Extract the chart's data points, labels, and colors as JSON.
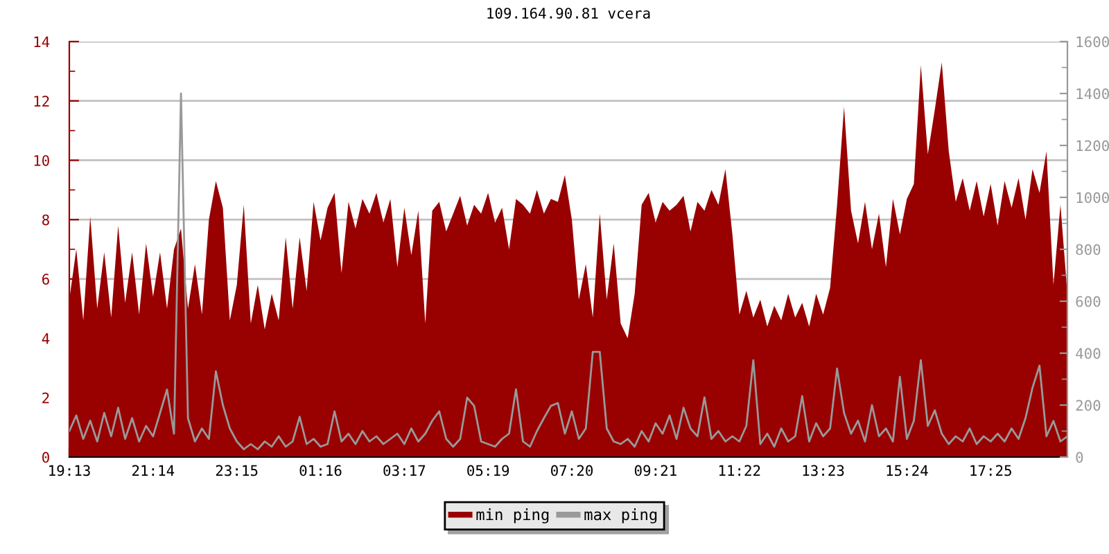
{
  "chart_data": {
    "type": "area",
    "title": "109.164.90.81 vcera",
    "categories": [
      "19:13",
      null,
      null,
      null,
      null,
      null,
      null,
      null,
      null,
      null,
      null,
      null,
      "21:14",
      null,
      null,
      null,
      null,
      null,
      null,
      null,
      null,
      null,
      null,
      null,
      "23:15",
      null,
      null,
      null,
      null,
      null,
      null,
      null,
      null,
      null,
      null,
      null,
      "01:16",
      null,
      null,
      null,
      null,
      null,
      null,
      null,
      null,
      null,
      null,
      null,
      "03:17",
      null,
      null,
      null,
      null,
      null,
      null,
      null,
      null,
      null,
      null,
      null,
      "05:19",
      null,
      null,
      null,
      null,
      null,
      null,
      null,
      null,
      null,
      null,
      null,
      "07:20",
      null,
      null,
      null,
      null,
      null,
      null,
      null,
      null,
      null,
      null,
      null,
      "09:21",
      null,
      null,
      null,
      null,
      null,
      null,
      null,
      null,
      null,
      null,
      null,
      "11:22",
      null,
      null,
      null,
      null,
      null,
      null,
      null,
      null,
      null,
      null,
      null,
      "13:23",
      null,
      null,
      null,
      null,
      null,
      null,
      null,
      null,
      null,
      null,
      null,
      "15:24",
      null,
      null,
      null,
      null,
      null,
      null,
      null,
      null,
      null,
      null,
      null,
      "17:25",
      null,
      null,
      null,
      null,
      null,
      null,
      null,
      null,
      null,
      null,
      null
    ],
    "series": [
      {
        "name": "min ping",
        "color": "#990000",
        "values": [
          5.3,
          7.0,
          4.6,
          8.1,
          5.0,
          6.9,
          4.7,
          7.8,
          5.2,
          6.9,
          4.8,
          7.2,
          5.4,
          6.9,
          5.0,
          7.0,
          7.7,
          5.0,
          6.5,
          4.8,
          8.0,
          9.3,
          8.4,
          4.6,
          5.8,
          8.5,
          4.5,
          5.8,
          4.3,
          5.5,
          4.6,
          7.4,
          5.0,
          7.4,
          5.6,
          8.6,
          7.3,
          8.4,
          8.9,
          6.2,
          8.6,
          7.7,
          8.7,
          8.2,
          8.9,
          7.9,
          8.7,
          6.4,
          8.4,
          6.8,
          8.3,
          4.5,
          8.3,
          8.6,
          7.6,
          8.2,
          8.8,
          7.8,
          8.5,
          8.2,
          8.9,
          7.9,
          8.4,
          7.0,
          8.7,
          8.5,
          8.2,
          9.0,
          8.2,
          8.7,
          8.6,
          9.5,
          8.0,
          5.3,
          6.5,
          4.7,
          8.2,
          5.3,
          7.2,
          4.5,
          4.0,
          5.5,
          8.5,
          8.9,
          7.9,
          8.6,
          8.3,
          8.5,
          8.8,
          7.6,
          8.6,
          8.3,
          9.0,
          8.5,
          9.7,
          7.5,
          4.8,
          5.6,
          4.7,
          5.3,
          4.4,
          5.1,
          4.6,
          5.5,
          4.7,
          5.2,
          4.4,
          5.5,
          4.8,
          5.7,
          8.5,
          11.8,
          8.3,
          7.2,
          8.6,
          7.0,
          8.2,
          6.4,
          8.7,
          7.5,
          8.7,
          9.2,
          13.2,
          10.2,
          11.7,
          13.3,
          10.3,
          8.6,
          9.4,
          8.3,
          9.3,
          8.1,
          9.2,
          7.8,
          9.3,
          8.4,
          9.4,
          8.0,
          9.7,
          8.9,
          10.3,
          5.8,
          8.5,
          5.5
        ]
      },
      {
        "name": "max ping",
        "color": "#999999",
        "type": "line",
        "axis": "y2",
        "values": [
          100,
          160,
          70,
          140,
          60,
          170,
          80,
          190,
          70,
          150,
          60,
          120,
          80,
          170,
          260,
          90,
          1400,
          150,
          60,
          110,
          70,
          330,
          200,
          110,
          60,
          30,
          50,
          30,
          60,
          40,
          80,
          40,
          60,
          155,
          50,
          70,
          40,
          50,
          176,
          60,
          90,
          50,
          100,
          60,
          80,
          50,
          70,
          90,
          50,
          110,
          60,
          90,
          140,
          176,
          70,
          40,
          70,
          229,
          197,
          60,
          50,
          40,
          70,
          90,
          261,
          60,
          40,
          100,
          150,
          197,
          208,
          90,
          176,
          70,
          110,
          405,
          405,
          110,
          60,
          50,
          70,
          40,
          100,
          60,
          130,
          90,
          160,
          70,
          190,
          110,
          80,
          230,
          70,
          100,
          60,
          80,
          60,
          120,
          373,
          50,
          90,
          40,
          110,
          60,
          80,
          235,
          60,
          130,
          80,
          110,
          341,
          170,
          90,
          140,
          60,
          200,
          80,
          110,
          60,
          309,
          70,
          140,
          373,
          120,
          180,
          90,
          50,
          80,
          60,
          110,
          50,
          80,
          60,
          90,
          60,
          110,
          70,
          150,
          267,
          352,
          80,
          139,
          60,
          80
        ]
      }
    ],
    "ylim": [
      0,
      14
    ],
    "yticks": [
      0,
      2,
      4,
      6,
      8,
      10,
      12,
      14
    ],
    "y2lim": [
      0,
      1600
    ],
    "y2ticks": [
      0,
      200,
      400,
      600,
      800,
      1000,
      1200,
      1400,
      1600
    ],
    "grid": "y",
    "legend": "bottom"
  }
}
